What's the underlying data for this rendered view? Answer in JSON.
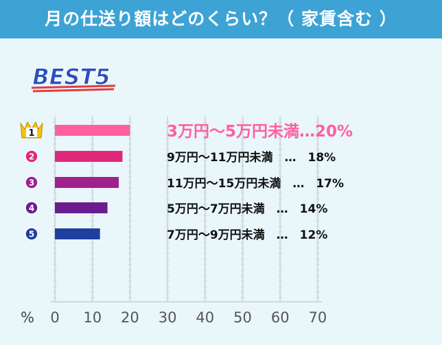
{
  "title": "月の仕送り額はどのくらい？（ 家賃含む ）",
  "badge": "BEST5",
  "colors": {
    "title_bar": "#3da3d4",
    "background": "#e9f6fa",
    "grid": "#cfd8dc",
    "top_label": "#ff5fa0",
    "crown": "#f6c20a",
    "badge_fill": "#2a4fbf",
    "badge_underline": "#e23c3c"
  },
  "chart_data": {
    "type": "bar",
    "orientation": "horizontal",
    "x_unit": "%",
    "xlim": [
      0,
      70
    ],
    "ticks": [
      "0",
      "10",
      "20",
      "30",
      "40",
      "50",
      "60",
      "70"
    ],
    "grid": true,
    "categories": [
      "3万円〜5万円未満",
      "9万円〜11万円未満",
      "11万円〜15万円未満",
      "5万円〜7万円未満",
      "7万円〜9万円未満"
    ],
    "values": [
      20,
      18,
      17,
      14,
      12
    ],
    "value_labels": [
      "20%",
      "18%",
      "17%",
      "14%",
      "12%"
    ],
    "bar_colors": [
      "#ff5fa0",
      "#e0287a",
      "#a0208e",
      "#6b1d8e",
      "#1e3f9e"
    ],
    "rank_labels": [
      "1",
      "2",
      "3",
      "4",
      "5"
    ],
    "row_labels": [
      "3万円〜5万円未満…20%",
      "9万円〜11万円未満　…　18%",
      "11万円〜15万円未満　…　17%",
      "5万円〜7万円未満　…　14%",
      "7万円〜9万円未満　…　12%"
    ]
  }
}
